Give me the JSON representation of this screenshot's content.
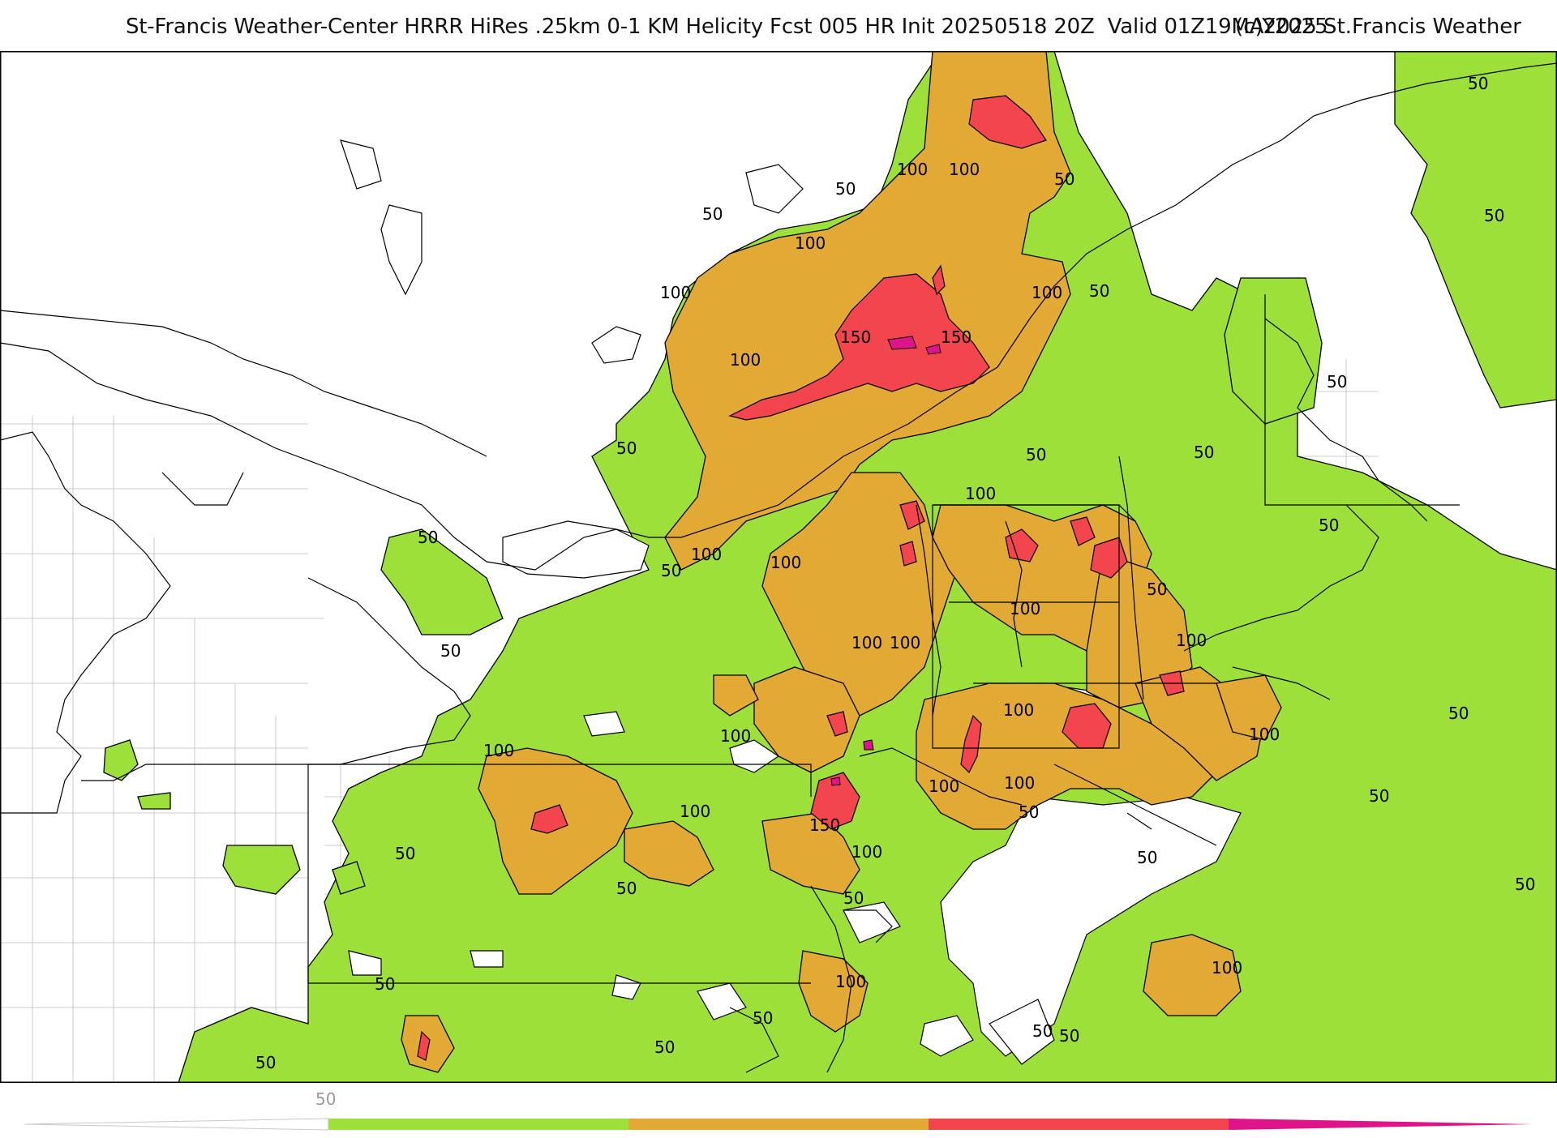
{
  "header": {
    "title": "St-Francis Weather-Center HRRR HiRes .25km 0-1 KM Helicity Fcst 005 HR Init 20250518 20Z  Valid 01Z19MAY2025",
    "copyright": "(c)2025 St.Francis Weather"
  },
  "colors": {
    "band_50_100": "#9de03a",
    "band_100_150": "#e3a935",
    "band_150_200": "#f2454d",
    "band_200_plus": "#e0148a",
    "linework": "#000000",
    "county_lines": "#b5b5b5"
  },
  "legend": {
    "start_label": "50",
    "bands": [
      {
        "from": 0,
        "to": 50,
        "color": "#ffffff"
      },
      {
        "from": 50,
        "to": 100,
        "color": "#9de03a"
      },
      {
        "from": 100,
        "to": 150,
        "color": "#e3a935"
      },
      {
        "from": 150,
        "to": 200,
        "color": "#f2454d"
      },
      {
        "from": 200,
        "to": 250,
        "color": "#e0148a"
      }
    ]
  },
  "contour_labels": [
    "50",
    "100",
    "150"
  ]
}
